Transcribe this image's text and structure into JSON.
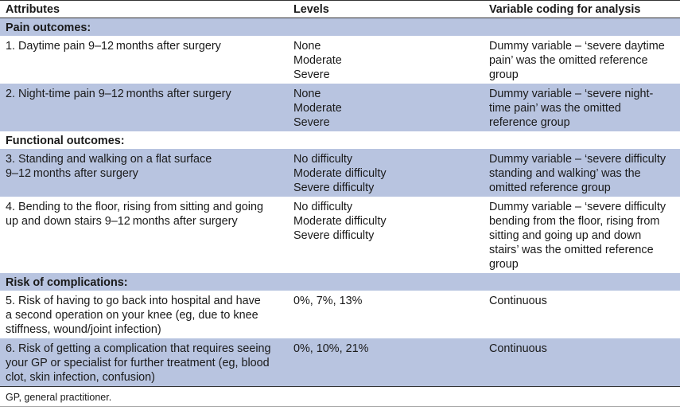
{
  "headers": [
    "Attributes",
    "Levels",
    "Variable coding for analysis"
  ],
  "sections": [
    {
      "title": "Pain outcomes:",
      "rows": [
        {
          "attribute": [
            "1. Daytime pain 9–12 months after surgery"
          ],
          "levels": [
            "None",
            "Moderate",
            "Severe"
          ],
          "coding": [
            "Dummy variable – ‘severe daytime",
            "pain’ was the omitted reference",
            "group"
          ]
        },
        {
          "attribute": [
            "2. Night-time pain 9–12 months after surgery"
          ],
          "levels": [
            "None",
            "Moderate",
            "Severe"
          ],
          "coding": [
            "Dummy variable – ‘severe night-",
            "time pain’ was the omitted",
            "reference group"
          ]
        }
      ]
    },
    {
      "title": "Functional outcomes:",
      "rows": [
        {
          "attribute": [
            "3. Standing and walking on a flat surface",
            "9–12 months after surgery"
          ],
          "levels": [
            "No difficulty",
            "Moderate difficulty",
            "Severe difficulty"
          ],
          "coding": [
            "Dummy variable – ‘severe difficulty",
            "standing and walking’ was the",
            "omitted reference group"
          ]
        },
        {
          "attribute": [
            "4. Bending to the floor, rising from sitting and going",
            "up and down stairs 9–12 months after surgery"
          ],
          "levels": [
            "No difficulty",
            "Moderate difficulty",
            "Severe difficulty"
          ],
          "coding": [
            "Dummy variable – ‘severe difficulty",
            "bending from the floor, rising from",
            "sitting and going up and down",
            "stairs’ was the omitted reference",
            "group"
          ]
        }
      ]
    },
    {
      "title": "Risk of complications:",
      "rows": [
        {
          "attribute": [
            "5. Risk of having to go back into hospital and have",
            "a second operation on your knee (eg, due to knee",
            "stiffness, wound/joint infection)"
          ],
          "levels": [
            "0%, 7%, 13%"
          ],
          "coding": [
            "Continuous"
          ]
        },
        {
          "attribute": [
            "6. Risk of getting a complication that requires seeing",
            "your GP or specialist for further treatment (eg, blood",
            "clot, skin infection, confusion)"
          ],
          "levels": [
            "0%, 10%, 21%"
          ],
          "coding": [
            "Continuous"
          ]
        }
      ]
    }
  ],
  "footnote": "GP, general practitioner.",
  "colors": {
    "tint": "#b8c4e0",
    "rule": "#333333"
  }
}
